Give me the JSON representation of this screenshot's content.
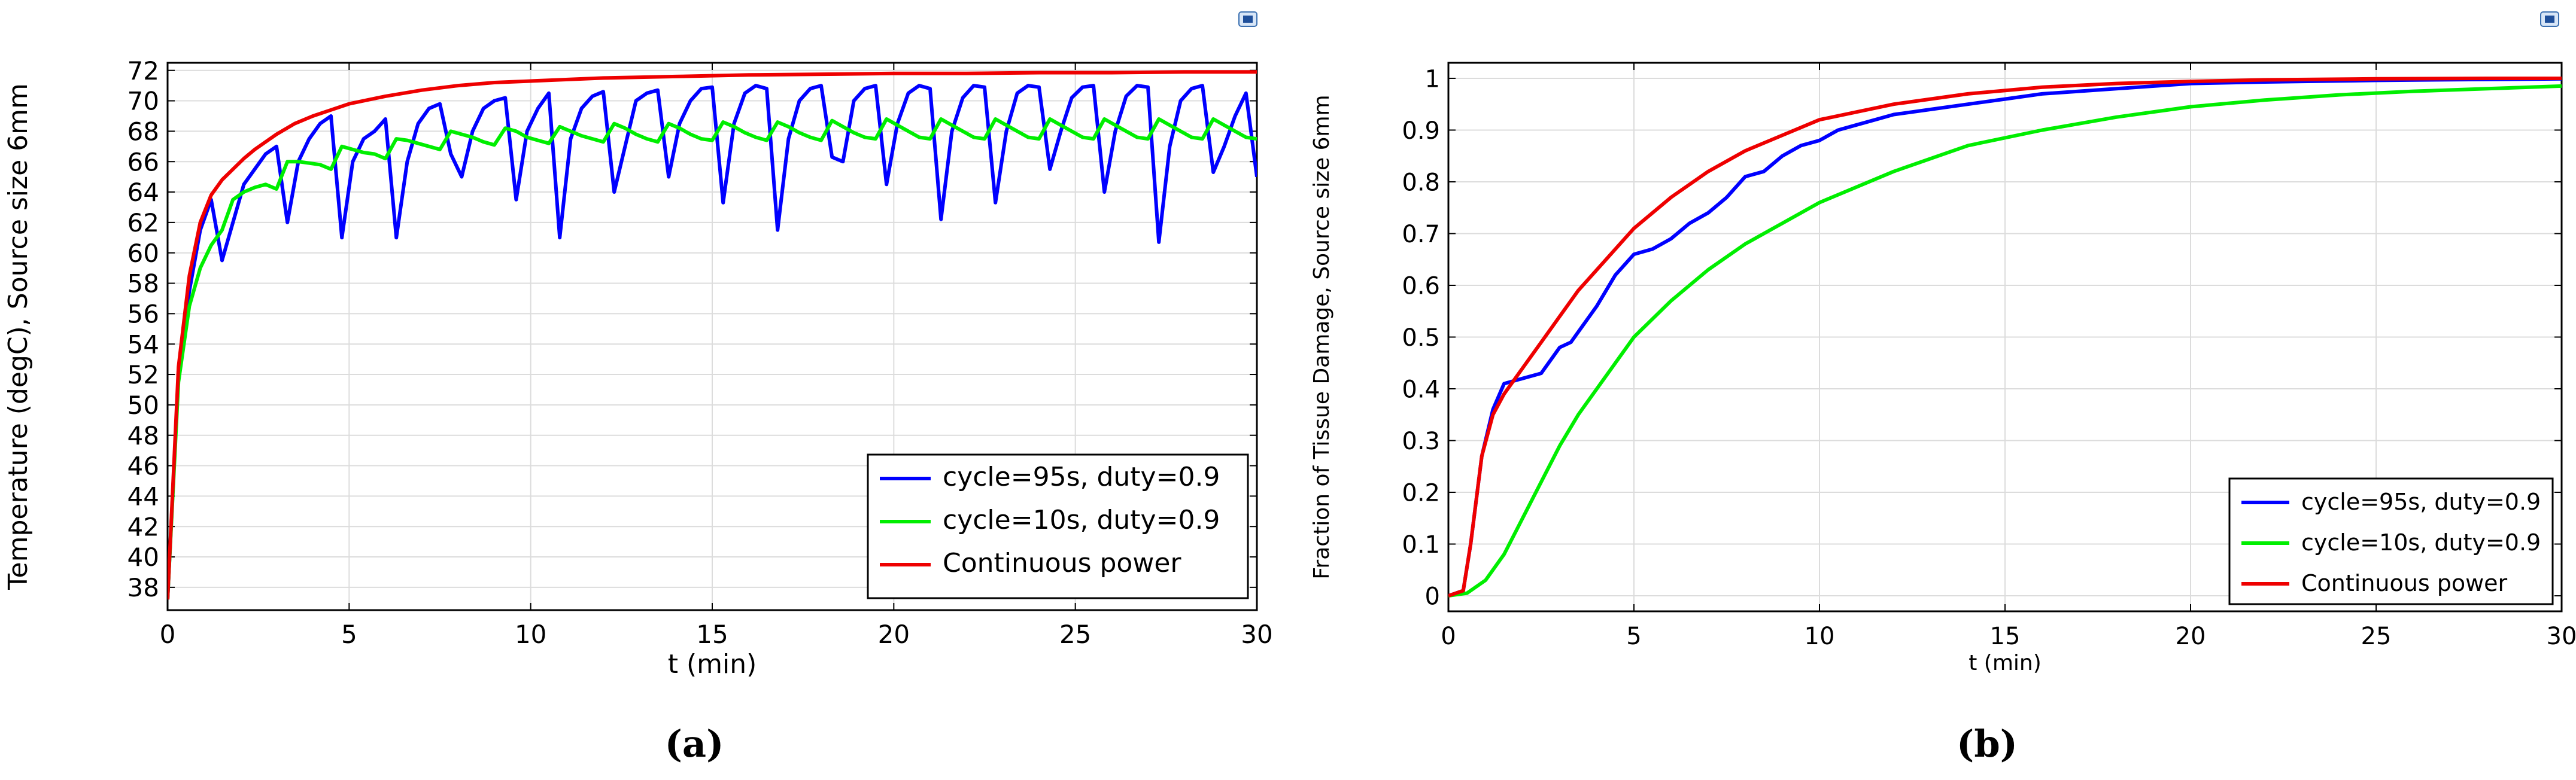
{
  "chart_data": [
    {
      "panel": "(a)",
      "type": "line",
      "xlabel": "t (min)",
      "ylabel": "Temperature (degC), Source size 6mm",
      "xlim": [
        0,
        30
      ],
      "ylim": [
        36.5,
        72.5
      ],
      "xticks": [
        0,
        5,
        10,
        15,
        20,
        25,
        30
      ],
      "yticks": [
        38,
        40,
        42,
        44,
        46,
        48,
        50,
        52,
        54,
        56,
        58,
        60,
        62,
        64,
        66,
        68,
        70,
        72
      ],
      "grid": true,
      "legend_position": "bottom-right",
      "series": [
        {
          "name": "cycle=95s, duty=0.9",
          "color": "#0000ff",
          "x": [
            0,
            0.3,
            0.6,
            0.9,
            1.2,
            1.5,
            1.8,
            2.1,
            2.4,
            2.7,
            3.0,
            3.3,
            3.6,
            3.9,
            4.2,
            4.5,
            4.8,
            5.1,
            5.4,
            5.7,
            6.0,
            6.3,
            6.6,
            6.9,
            7.2,
            7.5,
            7.8,
            8.1,
            8.4,
            8.7,
            9.0,
            9.3,
            9.6,
            9.9,
            10.2,
            10.5,
            10.8,
            11.1,
            11.4,
            11.7,
            12.0,
            12.3,
            12.6,
            12.9,
            13.2,
            13.5,
            13.8,
            14.1,
            14.4,
            14.7,
            15.0,
            15.3,
            15.6,
            15.9,
            16.2,
            16.5,
            16.8,
            17.1,
            17.4,
            17.7,
            18.0,
            18.3,
            18.6,
            18.9,
            19.2,
            19.5,
            19.8,
            20.1,
            20.4,
            20.7,
            21.0,
            21.3,
            21.6,
            21.9,
            22.2,
            22.5,
            22.8,
            23.1,
            23.4,
            23.7,
            24.0,
            24.3,
            24.6,
            24.9,
            25.2,
            25.5,
            25.8,
            26.1,
            26.4,
            26.7,
            27.0,
            27.3,
            27.6,
            27.9,
            28.2,
            28.5,
            28.8,
            29.1,
            29.4,
            29.7,
            30.0
          ],
          "y": [
            37.2,
            52.0,
            57.5,
            61.5,
            63.5,
            59.5,
            62.0,
            64.5,
            65.5,
            66.5,
            67.0,
            62.0,
            66.0,
            67.5,
            68.5,
            69.0,
            61.0,
            66.0,
            67.5,
            68.0,
            68.8,
            61.0,
            66.0,
            68.5,
            69.5,
            69.8,
            66.5,
            65.0,
            68.0,
            69.5,
            70.0,
            70.2,
            63.5,
            68.0,
            69.5,
            70.5,
            61.0,
            67.5,
            69.5,
            70.3,
            70.6,
            64.0,
            67.0,
            70.0,
            70.5,
            70.7,
            65.0,
            68.5,
            70.0,
            70.8,
            70.9,
            63.3,
            68.5,
            70.5,
            71.0,
            70.8,
            61.5,
            67.5,
            70.0,
            70.8,
            71.0,
            66.3,
            66.0,
            70.0,
            70.8,
            71.0,
            64.5,
            68.5,
            70.5,
            71.0,
            70.8,
            62.2,
            68.0,
            70.2,
            71.0,
            70.9,
            63.3,
            68.0,
            70.5,
            71.0,
            70.9,
            65.5,
            68.0,
            70.2,
            70.9,
            71.0,
            64.0,
            68.0,
            70.3,
            71.0,
            70.9,
            60.7,
            67.0,
            70.0,
            70.8,
            71.0,
            65.3,
            67.0,
            69.0,
            70.5,
            65.0
          ]
        },
        {
          "name": "cycle=10s, duty=0.9",
          "color": "#00ee00",
          "x": [
            0,
            0.3,
            0.6,
            0.9,
            1.2,
            1.5,
            1.8,
            2.1,
            2.4,
            2.7,
            3.0,
            3.3,
            3.6,
            3.9,
            4.2,
            4.5,
            4.8,
            5.1,
            5.4,
            5.7,
            6.0,
            6.3,
            6.6,
            6.9,
            7.2,
            7.5,
            7.8,
            8.1,
            8.4,
            8.7,
            9.0,
            9.3,
            9.6,
            9.9,
            10.2,
            10.5,
            10.8,
            11.1,
            11.4,
            11.7,
            12.0,
            12.3,
            12.6,
            12.9,
            13.2,
            13.5,
            13.8,
            14.1,
            14.4,
            14.7,
            15.0,
            15.3,
            15.6,
            15.9,
            16.2,
            16.5,
            16.8,
            17.1,
            17.4,
            17.7,
            18.0,
            18.3,
            18.6,
            18.9,
            19.2,
            19.5,
            19.8,
            20.1,
            20.4,
            20.7,
            21.0,
            21.3,
            21.6,
            21.9,
            22.2,
            22.5,
            22.8,
            23.1,
            23.4,
            23.7,
            24.0,
            24.3,
            24.6,
            24.9,
            25.2,
            25.5,
            25.8,
            26.1,
            26.4,
            26.7,
            27.0,
            27.3,
            27.6,
            27.9,
            28.2,
            28.5,
            28.8,
            29.1,
            29.4,
            29.7,
            30.0
          ],
          "y": [
            37.2,
            51.5,
            56.5,
            59.0,
            60.5,
            61.5,
            63.5,
            64.0,
            64.3,
            64.5,
            64.2,
            66.0,
            66.0,
            65.9,
            65.8,
            65.5,
            67.0,
            66.8,
            66.6,
            66.5,
            66.2,
            67.5,
            67.4,
            67.2,
            67.0,
            66.8,
            68.0,
            67.8,
            67.6,
            67.3,
            67.1,
            68.2,
            68.0,
            67.6,
            67.4,
            67.2,
            68.3,
            68.0,
            67.7,
            67.5,
            67.3,
            68.5,
            68.2,
            67.8,
            67.5,
            67.3,
            68.5,
            68.2,
            67.8,
            67.5,
            67.4,
            68.6,
            68.3,
            67.9,
            67.6,
            67.4,
            68.6,
            68.3,
            67.9,
            67.6,
            67.4,
            68.7,
            68.3,
            67.9,
            67.6,
            67.5,
            68.8,
            68.4,
            68.0,
            67.6,
            67.5,
            68.8,
            68.4,
            68.0,
            67.6,
            67.5,
            68.8,
            68.4,
            68.0,
            67.6,
            67.5,
            68.8,
            68.4,
            68.0,
            67.6,
            67.5,
            68.8,
            68.4,
            68.0,
            67.6,
            67.5,
            68.8,
            68.4,
            68.0,
            67.6,
            67.5,
            68.8,
            68.4,
            68.0,
            67.6,
            67.5
          ]
        },
        {
          "name": "Continuous power",
          "color": "#ee0000",
          "x": [
            0,
            0.3,
            0.6,
            0.9,
            1.2,
            1.5,
            1.8,
            2.1,
            2.4,
            2.7,
            3.0,
            3.5,
            4.0,
            4.5,
            5.0,
            6.0,
            7.0,
            8.0,
            9.0,
            10.0,
            12.0,
            14.0,
            16.0,
            18.0,
            20.0,
            22.0,
            24.0,
            26.0,
            28.0,
            30.0
          ],
          "y": [
            37.2,
            52.5,
            58.5,
            62.0,
            63.8,
            64.8,
            65.5,
            66.2,
            66.8,
            67.3,
            67.8,
            68.5,
            69.0,
            69.4,
            69.8,
            70.3,
            70.7,
            71.0,
            71.2,
            71.3,
            71.5,
            71.6,
            71.7,
            71.75,
            71.8,
            71.8,
            71.85,
            71.85,
            71.9,
            71.9
          ]
        }
      ]
    },
    {
      "panel": "(b)",
      "type": "line",
      "xlabel": "t (min)",
      "ylabel": "Fraction of Tissue Damage, Source size 6mm",
      "xlim": [
        0,
        30
      ],
      "ylim": [
        -0.03,
        1.03
      ],
      "xticks": [
        0,
        5,
        10,
        15,
        20,
        25,
        30
      ],
      "yticks": [
        0,
        0.1,
        0.2,
        0.3,
        0.4,
        0.5,
        0.6,
        0.7,
        0.8,
        0.9,
        1
      ],
      "grid": true,
      "legend_position": "bottom-right",
      "series": [
        {
          "name": "cycle=95s, duty=0.9",
          "color": "#0000ff",
          "x": [
            0,
            0.4,
            0.6,
            0.9,
            1.2,
            1.5,
            2.0,
            2.5,
            3.0,
            3.3,
            3.6,
            4.0,
            4.5,
            5.0,
            5.5,
            6.0,
            6.5,
            7.0,
            7.5,
            8.0,
            8.5,
            9.0,
            9.5,
            10.0,
            10.5,
            11.0,
            11.5,
            12.0,
            13.0,
            14.0,
            15.0,
            16.0,
            18.0,
            20.0,
            22.0,
            25.0,
            28.0,
            30.0
          ],
          "y": [
            0,
            0.01,
            0.1,
            0.27,
            0.36,
            0.41,
            0.42,
            0.43,
            0.48,
            0.49,
            0.52,
            0.56,
            0.62,
            0.66,
            0.67,
            0.69,
            0.72,
            0.74,
            0.77,
            0.81,
            0.82,
            0.85,
            0.87,
            0.88,
            0.9,
            0.91,
            0.92,
            0.93,
            0.94,
            0.95,
            0.96,
            0.97,
            0.98,
            0.99,
            0.993,
            0.996,
            0.998,
            0.999
          ]
        },
        {
          "name": "cycle=10s, duty=0.9",
          "color": "#00ee00",
          "x": [
            0,
            0.5,
            1.0,
            1.5,
            2.0,
            2.5,
            3.0,
            3.5,
            4.0,
            5.0,
            6.0,
            7.0,
            8.0,
            9.0,
            10.0,
            12.0,
            14.0,
            16.0,
            18.0,
            20.0,
            22.0,
            24.0,
            26.0,
            28.0,
            30.0
          ],
          "y": [
            0,
            0.005,
            0.03,
            0.08,
            0.15,
            0.22,
            0.29,
            0.35,
            0.4,
            0.5,
            0.57,
            0.63,
            0.68,
            0.72,
            0.76,
            0.82,
            0.87,
            0.9,
            0.925,
            0.945,
            0.958,
            0.968,
            0.975,
            0.98,
            0.985
          ]
        },
        {
          "name": "Continuous power",
          "color": "#ee0000",
          "x": [
            0,
            0.4,
            0.6,
            0.9,
            1.2,
            1.5,
            2.0,
            2.5,
            3.0,
            3.5,
            4.0,
            5.0,
            6.0,
            7.0,
            8.0,
            9.0,
            10.0,
            12.0,
            14.0,
            16.0,
            18.0,
            20.0,
            22.0,
            25.0,
            28.0,
            30.0
          ],
          "y": [
            0,
            0.01,
            0.1,
            0.27,
            0.35,
            0.39,
            0.44,
            0.49,
            0.54,
            0.59,
            0.63,
            0.71,
            0.77,
            0.82,
            0.86,
            0.89,
            0.92,
            0.95,
            0.97,
            0.983,
            0.99,
            0.994,
            0.997,
            0.999,
            1.0,
            1.0
          ]
        }
      ]
    }
  ]
}
